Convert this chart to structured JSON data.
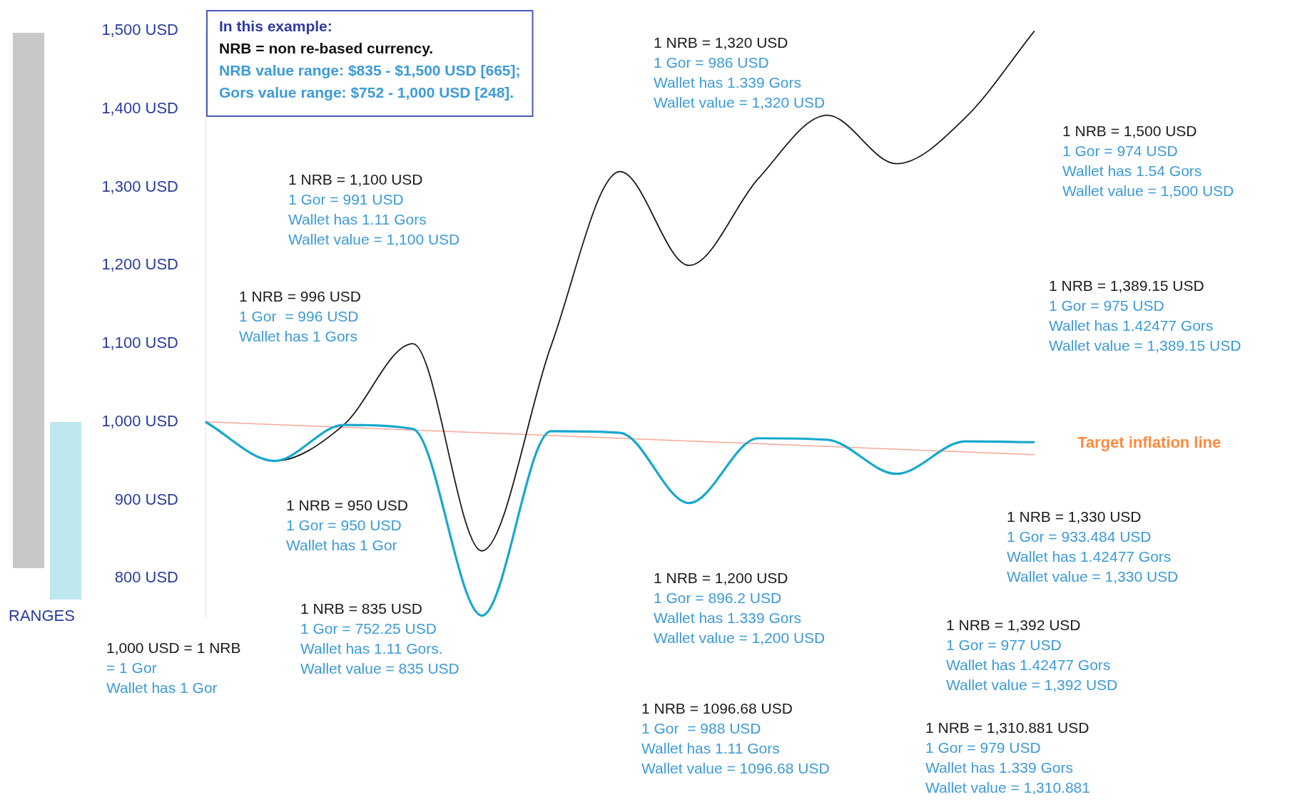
{
  "chart_data": {
    "type": "line",
    "categories": [
      null,
      null,
      null,
      null,
      null,
      null,
      null,
      null,
      null,
      null,
      null,
      null,
      null
    ],
    "series": [
      {
        "color": "#1a1a1a",
        "values": [
          1000,
          950,
          996,
          1100,
          835,
          1096.68,
          1320,
          1200,
          1310.881,
          1392,
          1330,
          1389.15,
          1500
        ]
      },
      {
        "color": "#17a8cc",
        "values": [
          1000,
          950,
          996,
          991,
          752.25,
          988,
          986,
          896.2,
          979,
          977,
          933.484,
          975,
          974
        ]
      },
      {
        "name": "Target inflation line",
        "color": "#f5a898",
        "values": [
          1000,
          null,
          null,
          null,
          null,
          null,
          null,
          null,
          null,
          null,
          null,
          null,
          958
        ]
      }
    ],
    "ylim": [
      750,
      1500
    ],
    "yticks": [
      {
        "value": 800,
        "label": "800 USD"
      },
      {
        "value": 900,
        "label": "900 USD"
      },
      {
        "value": 1000,
        "label": "1,000 USD"
      },
      {
        "value": 1100,
        "label": "1,100 USD"
      },
      {
        "value": 1200,
        "label": "1,200 USD"
      },
      {
        "value": 1300,
        "label": "1,300 USD"
      },
      {
        "value": 1400,
        "label": "1,400 USD"
      },
      {
        "value": 1500,
        "label": "1,500 USD"
      }
    ],
    "marker": "none",
    "tick_labels": "y",
    "annotations": [
      "1,000 USD = 1 NRB\n= 1 Gor\nWallet has 1 Gor",
      "1 NRB = 950 USD\n1 Gor = 950 USD\nWallet has 1 Gor",
      "1 NRB = 996 USD\n1 Gor  = 996 USD\nWallet has 1 Gors",
      "1 NRB = 1,100 USD\n1 Gor = 991 USD\nWallet has 1.11 Gors\nWallet value = 1,100 USD",
      "1 NRB = 835 USD\n1 Gor = 752.25 USD\nWallet has 1.11 Gors.\nWallet value = 835 USD",
      "1 NRB = 1096.68 USD\n1 Gor  = 988 USD\nWallet has 1.11 Gors\nWallet value = 1096.68 USD",
      "1 NRB = 1,320 USD\n1 Gor = 986 USD\nWallet has 1.339 Gors\nWallet value = 1,320 USD",
      "1 NRB = 1,200 USD\n1 Gor = 896.2 USD\nWallet has 1.339 Gors\nWallet value = 1,200 USD",
      "1 NRB = 1,310.881 USD\n1 Gor = 979 USD\nWallet has 1.339 Gors\nWallet value = 1,310.881",
      "1 NRB = 1,392 USD\n1 Gor = 977 USD\nWallet has 1.42477 Gors\nWallet value = 1,392 USD",
      "1 NRB = 1,330 USD\n1 Gor = 933.484 USD\nWallet has 1.42477 Gors\nWallet value = 1,330 USD",
      "1 NRB = 1,389.15 USD\n1 Gor = 975 USD\nWallet has 1.42477 Gors\nWallet value = 1,389.15 USD",
      "1 NRB = 1,500 USD\n1 Gor = 974 USD\nWallet has 1.54 Gors\nWallet value = 1,500 USD",
      "In this example:\nNRB = non re-based currency.\nNRB value range: $835 - $1,500 USD [665];\nGors value range: $752 - 1,000 USD [248].",
      "RANGES"
    ]
  }
}
